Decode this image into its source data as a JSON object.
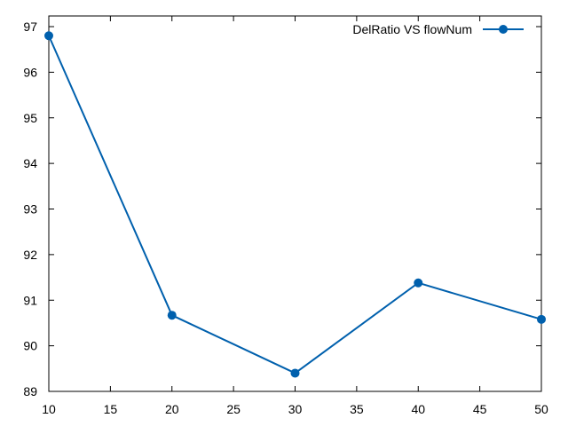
{
  "chart_data": {
    "type": "line",
    "title": "",
    "xlabel": "",
    "ylabel": "",
    "xlim": [
      10,
      50
    ],
    "ylim": [
      89,
      97
    ],
    "xticks": [
      10,
      15,
      20,
      25,
      30,
      35,
      40,
      45,
      50
    ],
    "yticks": [
      89,
      90,
      91,
      92,
      93,
      94,
      95,
      96,
      97
    ],
    "grid": false,
    "legend_position": "top-right",
    "series": [
      {
        "name": "DelRatio VS flowNum",
        "color": "#0060ad",
        "marker": "circle",
        "x": [
          10,
          20,
          30,
          40,
          50
        ],
        "y": [
          96.8,
          90.67,
          89.4,
          91.38,
          90.58
        ]
      }
    ]
  }
}
